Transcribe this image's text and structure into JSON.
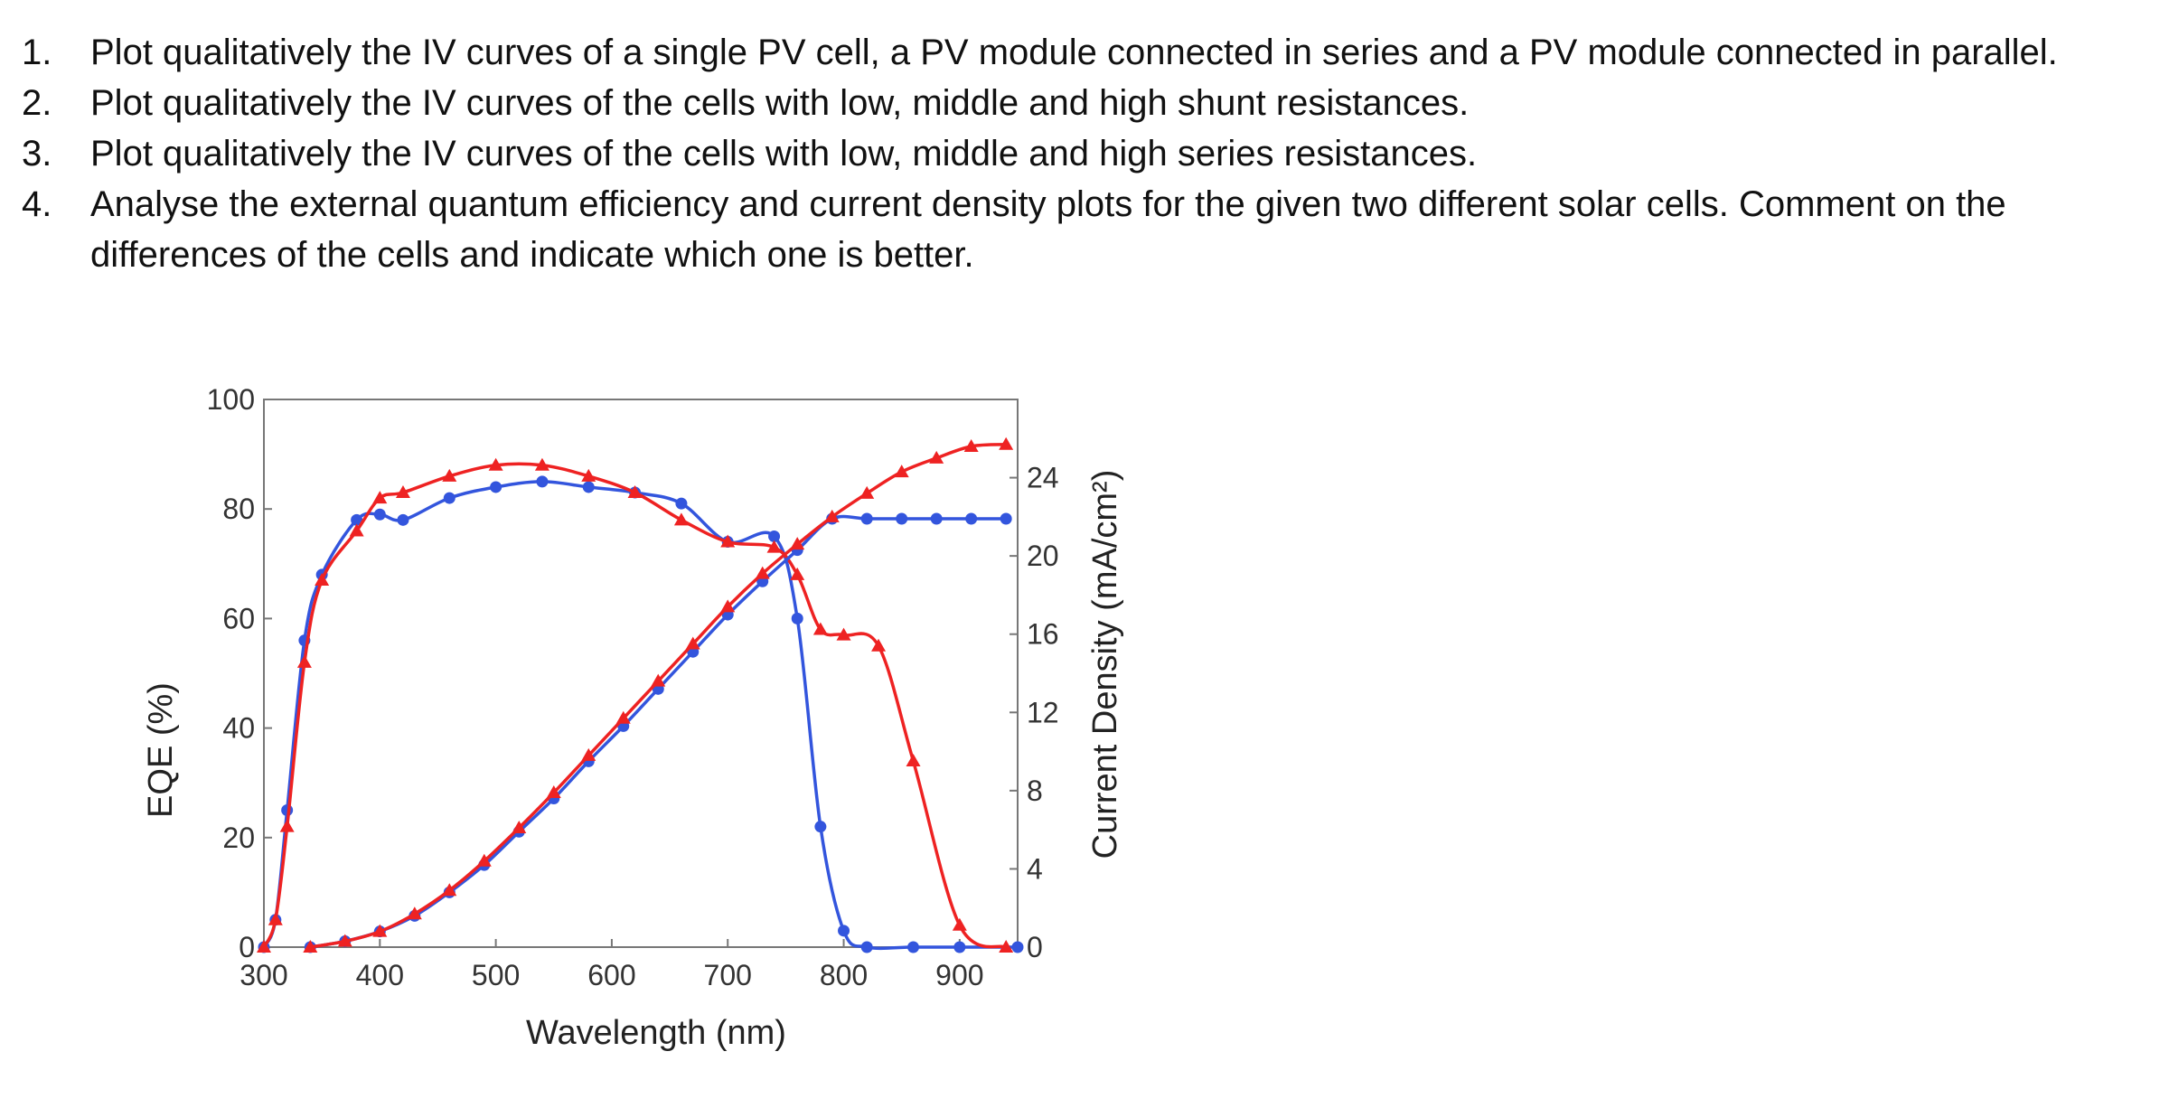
{
  "questions": [
    {
      "num": "1.",
      "text": "Plot qualitatively the IV curves of a single PV cell, a PV module connected in series and a PV module connected in parallel."
    },
    {
      "num": "2.",
      "text": "Plot qualitatively the IV curves of the cells with low, middle and high shunt resistances."
    },
    {
      "num": "3.",
      "text": "Plot qualitatively the IV curves of the cells with low, middle and high series resistances."
    },
    {
      "num": "4.",
      "text": "Analyse the  external quantum efficiency and current density plots for the given two different solar cells. Comment on the differences of the cells and indicate which one is better."
    }
  ],
  "chart_data": {
    "type": "line",
    "title": "",
    "xlabel": "Wavelength (nm)",
    "ylabel": "EQE (%)",
    "y2label": "Current Density (mA/cm²)",
    "xlim": [
      300,
      950
    ],
    "ylim": [
      0,
      100
    ],
    "y2lim": [
      0,
      28
    ],
    "xticks": [
      "300",
      "400",
      "500",
      "600",
      "700",
      "800",
      "900"
    ],
    "yticks": [
      "0",
      "20",
      "40",
      "60",
      "80",
      "100"
    ],
    "y2ticks": [
      "0",
      "4",
      "8",
      "12",
      "16",
      "20",
      "24"
    ],
    "grid": false,
    "series": [
      {
        "color": "#3355dd",
        "marker": "circle",
        "axis": "left",
        "x": [
          300,
          310,
          320,
          335,
          350,
          380,
          400,
          420,
          460,
          500,
          540,
          580,
          620,
          660,
          700,
          740,
          760,
          780,
          800,
          820,
          860,
          900,
          950
        ],
        "y": [
          0,
          5,
          25,
          56,
          68,
          78,
          79,
          78,
          82,
          84,
          85,
          84,
          83,
          81,
          74,
          75,
          60,
          22,
          3,
          0,
          0,
          0,
          0
        ]
      },
      {
        "color": "#ee2222",
        "marker": "triangle",
        "axis": "left",
        "x": [
          300,
          310,
          320,
          335,
          350,
          380,
          400,
          420,
          460,
          500,
          540,
          580,
          620,
          660,
          700,
          740,
          760,
          780,
          800,
          830,
          860,
          900,
          940
        ],
        "y": [
          0,
          5,
          22,
          52,
          67,
          76,
          82,
          83,
          86,
          88,
          88,
          86,
          83,
          78,
          74,
          73,
          68,
          58,
          57,
          55,
          34,
          4,
          0
        ]
      },
      {
        "color": "#3355dd",
        "marker": "circle",
        "axis": "right",
        "x": [
          340,
          370,
          400,
          430,
          460,
          490,
          520,
          550,
          580,
          610,
          640,
          670,
          700,
          730,
          760,
          790,
          820,
          850,
          880,
          910,
          940
        ],
        "y": [
          0,
          0.3,
          0.8,
          1.6,
          2.8,
          4.2,
          5.9,
          7.6,
          9.5,
          11.3,
          13.2,
          15.1,
          17.0,
          18.7,
          20.3,
          21.9,
          21.9,
          21.9,
          21.9,
          21.9,
          21.9
        ]
      },
      {
        "color": "#ee2222",
        "marker": "triangle",
        "axis": "right",
        "x": [
          340,
          370,
          400,
          430,
          460,
          490,
          520,
          550,
          580,
          610,
          640,
          670,
          700,
          730,
          760,
          790,
          820,
          850,
          880,
          910,
          940
        ],
        "y": [
          0,
          0.3,
          0.8,
          1.7,
          2.9,
          4.4,
          6.1,
          7.9,
          9.8,
          11.7,
          13.6,
          15.5,
          17.4,
          19.1,
          20.6,
          22.0,
          23.2,
          24.3,
          25.0,
          25.6,
          25.7
        ]
      }
    ]
  }
}
